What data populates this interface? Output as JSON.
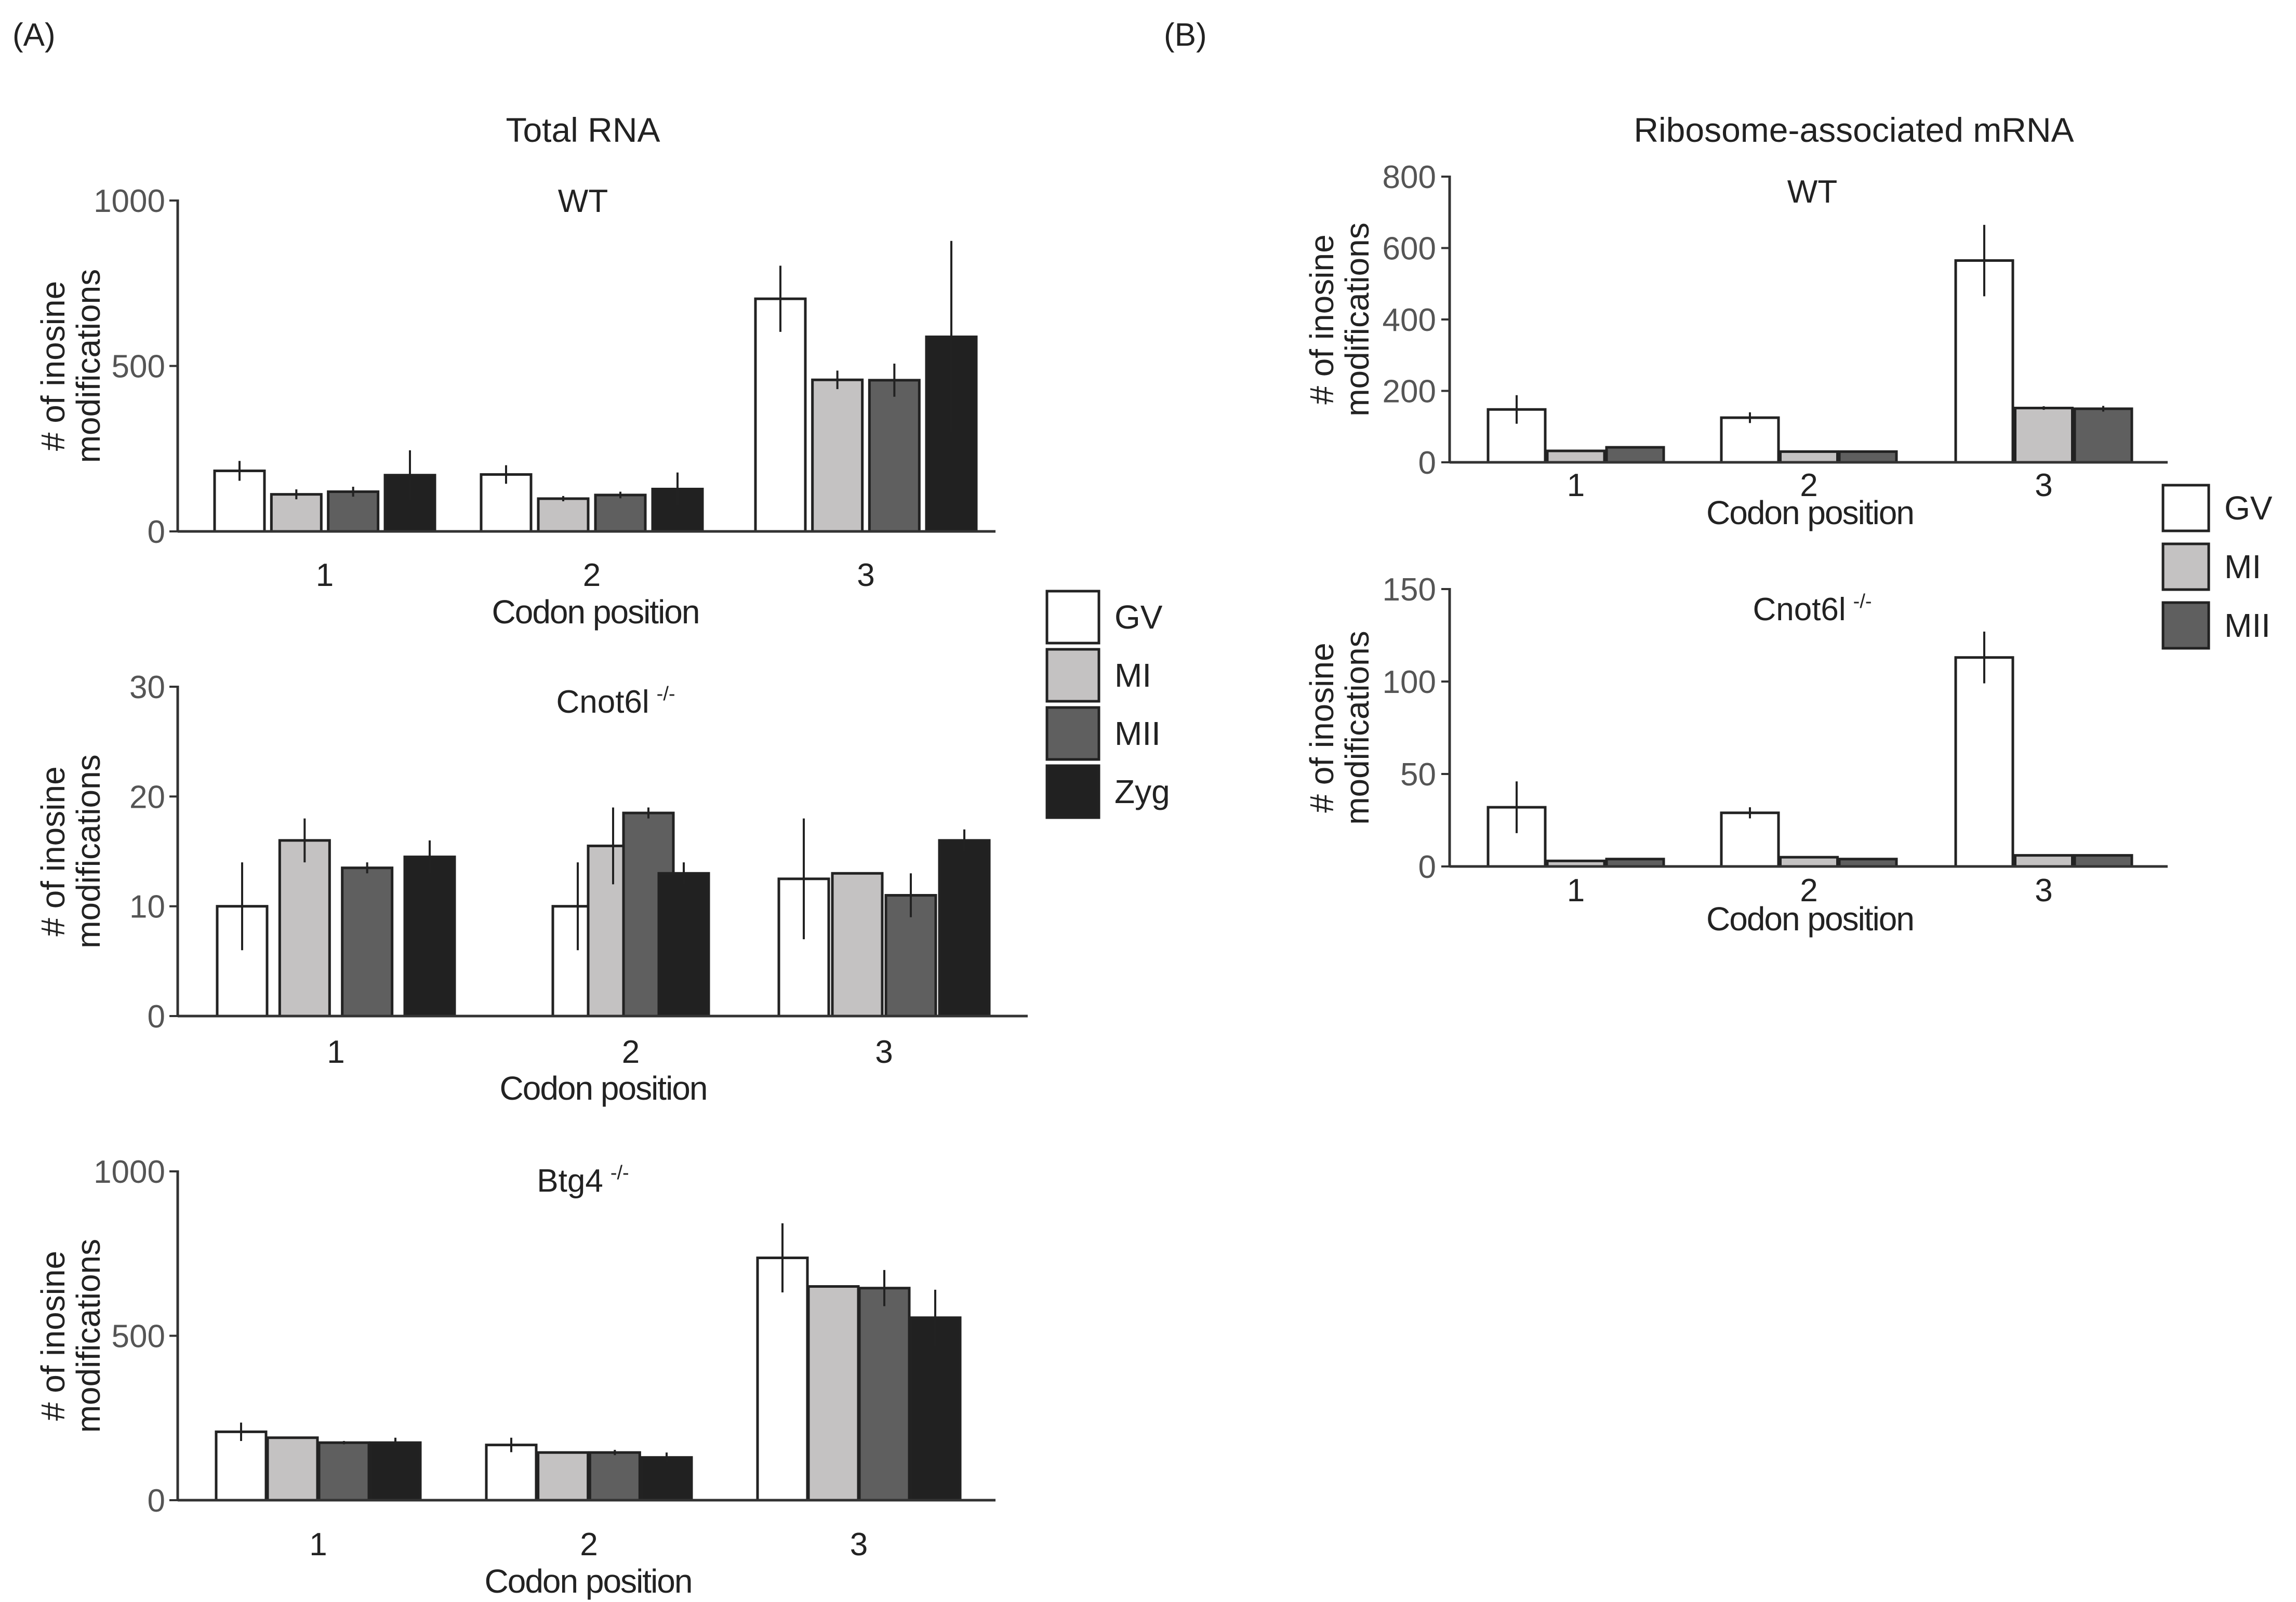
{
  "panels": {
    "a": {
      "label": "(A)",
      "title": "Total RNA"
    },
    "b": {
      "label": "(B)",
      "title": "Ribosome-associated mRNA"
    }
  },
  "colors": {
    "GV": "#ffffff",
    "MI": "#c4c2c2",
    "MII": "#5f5f5f",
    "Zyg": "#212121",
    "edge": "#222222",
    "axis": "#333333"
  },
  "legends": {
    "a": [
      "GV",
      "MI",
      "MII",
      "Zyg"
    ],
    "b": [
      "GV",
      "MI",
      "MII"
    ]
  },
  "chart_data": [
    {
      "id": "a-wt",
      "type": "bar",
      "title": "WT",
      "superscript": "",
      "xlabel": "Codon position",
      "ylabel": [
        "# of inosine",
        "modifications"
      ],
      "categories": [
        "1",
        "2",
        "3"
      ],
      "ylim": [
        0,
        1000
      ],
      "yticks": [
        0,
        500,
        1000
      ],
      "series": [
        {
          "name": "GV",
          "values": [
            183,
            172,
            703
          ],
          "errors": [
            30,
            28,
            100
          ]
        },
        {
          "name": "MI",
          "values": [
            112,
            99,
            458
          ],
          "errors": [
            15,
            8,
            28
          ]
        },
        {
          "name": "MII",
          "values": [
            120,
            110,
            457
          ],
          "errors": [
            15,
            10,
            50
          ]
        },
        {
          "name": "Zyg",
          "values": [
            170,
            128,
            588
          ],
          "errors": [
            75,
            50,
            290
          ]
        }
      ]
    },
    {
      "id": "a-cnot",
      "type": "bar",
      "title": "Cnot6l",
      "superscript": "-/-",
      "xlabel": "Codon position",
      "ylabel": [
        "# of inosine",
        "modifications"
      ],
      "categories": [
        "1",
        "2",
        "3"
      ],
      "ylim": [
        0,
        30
      ],
      "yticks": [
        0,
        10,
        20,
        30
      ],
      "series": [
        {
          "name": "GV",
          "values": [
            10,
            10,
            12.5
          ],
          "errors": [
            4,
            4,
            5.5
          ]
        },
        {
          "name": "MI",
          "values": [
            16,
            15.5,
            13
          ],
          "errors": [
            2,
            3.5,
            0
          ]
        },
        {
          "name": "MII",
          "values": [
            13.5,
            18.5,
            11
          ],
          "errors": [
            0.5,
            0.5,
            2
          ]
        },
        {
          "name": "Zyg",
          "values": [
            14.5,
            13,
            16
          ],
          "errors": [
            1.5,
            1,
            1
          ]
        }
      ]
    },
    {
      "id": "a-btg",
      "type": "bar",
      "title": "Btg4",
      "superscript": "-/-",
      "xlabel": "Codon position",
      "ylabel": [
        "# of inosine",
        "modifications"
      ],
      "categories": [
        "1",
        "2",
        "3"
      ],
      "ylim": [
        0,
        1000
      ],
      "yticks": [
        0,
        500,
        1000
      ],
      "series": [
        {
          "name": "GV",
          "values": [
            208,
            168,
            737
          ],
          "errors": [
            28,
            22,
            105
          ]
        },
        {
          "name": "MI",
          "values": [
            190,
            145,
            650
          ],
          "errors": [
            0,
            0,
            0
          ]
        },
        {
          "name": "MII",
          "values": [
            175,
            145,
            645
          ],
          "errors": [
            5,
            8,
            55
          ]
        },
        {
          "name": "Zyg",
          "values": [
            175,
            130,
            555
          ],
          "errors": [
            15,
            15,
            85
          ]
        }
      ]
    },
    {
      "id": "b-wt",
      "type": "bar",
      "title": "WT",
      "superscript": "",
      "xlabel": "Codon position",
      "ylabel": [
        "# of inosine",
        "modifications"
      ],
      "categories": [
        "1",
        "2",
        "3"
      ],
      "ylim": [
        0,
        800
      ],
      "yticks": [
        0,
        200,
        400,
        600,
        800
      ],
      "series": [
        {
          "name": "GV",
          "values": [
            148,
            125,
            565
          ],
          "errors": [
            40,
            15,
            100
          ]
        },
        {
          "name": "MI",
          "values": [
            32,
            30,
            152
          ],
          "errors": [
            0,
            0,
            5
          ]
        },
        {
          "name": "MII",
          "values": [
            42,
            30,
            150
          ],
          "errors": [
            3,
            0,
            8
          ]
        }
      ]
    },
    {
      "id": "b-cnot",
      "type": "bar",
      "title": "Cnot6l",
      "superscript": "-/-",
      "xlabel": "Codon position",
      "ylabel": [
        "# of inosine",
        "modifications"
      ],
      "categories": [
        "1",
        "2",
        "3"
      ],
      "ylim": [
        0,
        150
      ],
      "yticks": [
        0,
        50,
        100,
        150
      ],
      "series": [
        {
          "name": "GV",
          "values": [
            32,
            29,
            113
          ],
          "errors": [
            14,
            3,
            14
          ]
        },
        {
          "name": "MI",
          "values": [
            3,
            5,
            6
          ],
          "errors": [
            0,
            0,
            0
          ]
        },
        {
          "name": "MII",
          "values": [
            4,
            4,
            6
          ],
          "errors": [
            0,
            0,
            0
          ]
        }
      ]
    }
  ]
}
